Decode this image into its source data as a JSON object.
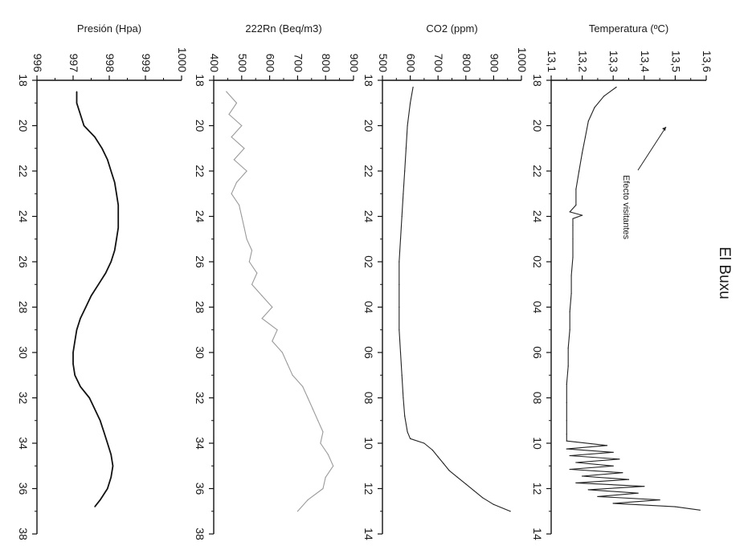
{
  "figure": {
    "title": "El Buxu",
    "annotation": "Efecto visitantes"
  },
  "chart_data": [
    {
      "type": "line",
      "ylabel": "Temperatura (ºC)",
      "ylim": [
        13.1,
        13.6
      ],
      "yticks": [
        "13,6",
        "13,5",
        "13,4",
        "13,3",
        "13,2",
        "13,1"
      ],
      "xlim": [
        18,
        38
      ],
      "xticks": [
        "18",
        "20",
        "22",
        "24",
        "02",
        "04",
        "06",
        "08",
        "10",
        "12",
        "14"
      ],
      "series": [
        {
          "x": [
            18.3,
            18.7,
            19.2,
            19.8,
            20.5,
            21.2,
            22,
            22.8,
            23.5,
            23.8,
            23.95,
            24.1,
            24.4,
            25,
            25.8,
            26.6,
            27.4,
            28.2,
            29,
            29.8,
            30.6,
            31.4,
            32.2,
            33,
            33.6,
            33.9,
            34.1,
            34.25,
            34.4,
            34.55,
            34.7,
            34.85,
            35,
            35.15,
            35.3,
            35.45,
            35.6,
            35.75,
            35.9,
            36.05,
            36.2,
            36.35,
            36.5,
            36.65,
            36.8,
            36.95
          ],
          "values": [
            13.31,
            13.27,
            13.24,
            13.22,
            13.21,
            13.2,
            13.19,
            13.18,
            13.18,
            13.16,
            13.2,
            13.17,
            13.17,
            13.17,
            13.17,
            13.165,
            13.165,
            13.16,
            13.16,
            13.155,
            13.155,
            13.15,
            13.15,
            13.15,
            13.15,
            13.15,
            13.28,
            13.15,
            13.3,
            13.16,
            13.32,
            13.18,
            13.3,
            13.16,
            13.33,
            13.2,
            13.35,
            13.18,
            13.4,
            13.22,
            13.38,
            13.25,
            13.45,
            13.3,
            13.5,
            13.58
          ]
        }
      ]
    },
    {
      "type": "line",
      "ylabel": "CO2 (ppm)",
      "ylim": [
        500,
        1000
      ],
      "yticks": [
        "1000",
        "900",
        "800",
        "700",
        "600",
        "500"
      ],
      "xlim": [
        18,
        38
      ],
      "xticks": [
        "18",
        "20",
        "22",
        "24",
        "02",
        "04",
        "06",
        "08",
        "10",
        "12",
        "14"
      ],
      "series": [
        {
          "x": [
            18.3,
            19,
            20,
            21,
            22,
            23,
            24,
            25,
            26,
            27,
            28,
            29,
            30,
            31,
            32,
            32.8,
            33.5,
            33.8,
            34,
            34.3,
            34.6,
            34.9,
            35.2,
            35.5,
            35.8,
            36.1,
            36.4,
            36.7,
            37
          ],
          "values": [
            610,
            600,
            590,
            585,
            580,
            575,
            570,
            565,
            560,
            560,
            560,
            560,
            565,
            570,
            575,
            580,
            590,
            600,
            650,
            680,
            700,
            720,
            740,
            770,
            800,
            830,
            860,
            900,
            960
          ]
        }
      ]
    },
    {
      "type": "line",
      "ylabel": "222Rn (Beq/m3)",
      "ylim": [
        350,
        900
      ],
      "yticks": [
        "900",
        "800",
        "700",
        "600",
        "500",
        "400"
      ],
      "xlim": [
        18,
        38
      ],
      "xticks": [
        "18",
        "20",
        "22",
        "24",
        "26",
        "28",
        "30",
        "32",
        "34",
        "36",
        "38"
      ],
      "series": [
        {
          "x": [
            18.5,
            19,
            19.5,
            20,
            20.5,
            21,
            21.5,
            22,
            22.5,
            23,
            23.5,
            24,
            24.5,
            25,
            25.5,
            26,
            26.5,
            27,
            27.5,
            28,
            28.5,
            29,
            29.5,
            30,
            30.5,
            31,
            31.5,
            32,
            32.5,
            33,
            33.5,
            34,
            34.5,
            35,
            35.5,
            36,
            36.5,
            37
          ],
          "values": [
            400,
            440,
            410,
            460,
            420,
            470,
            430,
            480,
            440,
            420,
            450,
            460,
            470,
            480,
            500,
            490,
            520,
            500,
            540,
            580,
            540,
            600,
            580,
            620,
            640,
            660,
            700,
            720,
            740,
            760,
            780,
            770,
            800,
            820,
            790,
            780,
            720,
            680
          ]
        }
      ]
    },
    {
      "type": "line",
      "ylabel": "Presión (Hpa)",
      "ylim": [
        996,
        1000
      ],
      "yticks": [
        "1000",
        "999",
        "998",
        "997",
        "996"
      ],
      "xlim": [
        18,
        38
      ],
      "xticks": [
        "18",
        "20",
        "22",
        "24",
        "26",
        "28",
        "30",
        "32",
        "34",
        "36",
        "38"
      ],
      "series": [
        {
          "x": [
            18.5,
            19,
            19.5,
            20,
            20.5,
            21,
            21.5,
            22,
            22.5,
            23,
            23.5,
            24,
            24.5,
            25,
            25.5,
            26,
            26.5,
            27,
            27.5,
            28,
            28.5,
            29,
            29.5,
            30,
            30.5,
            31,
            31.5,
            32,
            32.5,
            33,
            33.5,
            34,
            34.5,
            35,
            35.5,
            36,
            36.5,
            36.8
          ],
          "values": [
            997.1,
            997.1,
            997.2,
            997.3,
            997.6,
            997.8,
            997.95,
            998.05,
            998.15,
            998.2,
            998.25,
            998.25,
            998.25,
            998.2,
            998.15,
            998.05,
            997.9,
            997.7,
            997.5,
            997.35,
            997.2,
            997.1,
            997.05,
            997.0,
            997.0,
            997.05,
            997.2,
            997.45,
            997.6,
            997.75,
            997.85,
            997.95,
            998.05,
            998.1,
            998.05,
            997.95,
            997.75,
            997.6
          ]
        }
      ]
    }
  ]
}
